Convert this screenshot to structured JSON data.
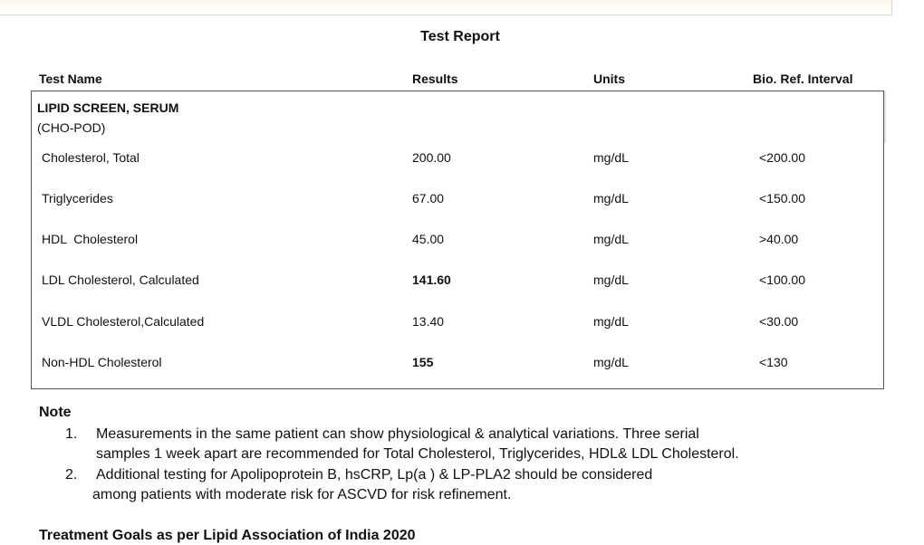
{
  "report": {
    "title": "Test Report",
    "columns": {
      "name": "Test Name",
      "results": "Results",
      "units": "Units",
      "ref": "Bio. Ref. Interval"
    },
    "section": {
      "title": "LIPID SCREEN, SERUM",
      "method": "(CHO-POD)"
    },
    "rows": [
      {
        "name": "Cholesterol, Total",
        "result": "200.00",
        "unit": "mg/dL",
        "ref": "<200.00",
        "flagged": false
      },
      {
        "name": "Triglycerides",
        "result": "67.00",
        "unit": "mg/dL",
        "ref": "<150.00",
        "flagged": false
      },
      {
        "name": "HDL  Cholesterol",
        "result": "45.00",
        "unit": "mg/dL",
        "ref": ">40.00",
        "flagged": false
      },
      {
        "name": "LDL Cholesterol, Calculated",
        "result": "141.60",
        "unit": "mg/dL",
        "ref": "<100.00",
        "flagged": true
      },
      {
        "name": "VLDL Cholesterol,Calculated",
        "result": "13.40",
        "unit": "mg/dL",
        "ref": "<30.00",
        "flagged": false
      },
      {
        "name": "Non-HDL Cholesterol",
        "result": "155",
        "unit": "mg/dL",
        "ref": "<130",
        "flagged": true
      }
    ]
  },
  "note": {
    "heading": "Note",
    "items": [
      {
        "num": "1.",
        "line1": "Measurements in the same patient can show physiological & analytical variations. Three serial",
        "line2": "samples 1 week apart are recommended for Total Cholesterol, Triglycerides, HDL& LDL Cholesterol."
      },
      {
        "num": "2.",
        "line1": "Additional testing for Apolipoprotein B, hsCRP, Lp(a ) & LP-PLA2 should be considered",
        "line2": "among patients with moderate risk for ASCVD for risk refinement."
      }
    ]
  },
  "goals_heading": "Treatment Goals as per Lipid Association of India 2020"
}
